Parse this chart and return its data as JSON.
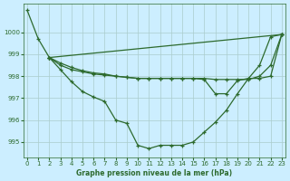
{
  "xlabel": "Graphe pression niveau de la mer (hPa)",
  "background_color": "#cceeff",
  "grid_color": "#aacccc",
  "line_color": "#2d6a2d",
  "ylim": [
    994.3,
    1001.3
  ],
  "xlim": [
    -0.3,
    23.3
  ],
  "yticks": [
    995,
    996,
    997,
    998,
    999,
    1000
  ],
  "xticks": [
    0,
    1,
    2,
    3,
    4,
    5,
    6,
    7,
    8,
    9,
    10,
    11,
    12,
    13,
    14,
    15,
    16,
    17,
    18,
    19,
    20,
    21,
    22,
    23
  ],
  "line1_x": [
    0,
    1,
    2,
    3,
    4,
    5,
    6,
    7,
    8,
    9,
    10,
    11,
    12,
    13,
    14,
    15,
    16,
    17,
    18,
    19,
    20,
    21,
    22,
    23
  ],
  "line1_y": [
    1001.0,
    999.7,
    998.85,
    998.3,
    997.75,
    997.3,
    997.05,
    996.85,
    996.0,
    995.85,
    994.85,
    994.7,
    994.85,
    994.85,
    994.85,
    995.0,
    995.45,
    995.9,
    996.45,
    997.2,
    997.9,
    998.5,
    999.8,
    999.9
  ],
  "line2_x": [
    2,
    23
  ],
  "line2_y": [
    998.85,
    999.9
  ],
  "line3_x": [
    2,
    3,
    4,
    5,
    6,
    7,
    8,
    9,
    10,
    11,
    12,
    13,
    14,
    15,
    16,
    17,
    18,
    19,
    20,
    21,
    22,
    23
  ],
  "line3_y": [
    998.85,
    998.6,
    998.4,
    998.25,
    998.15,
    998.1,
    998.0,
    997.95,
    997.9,
    997.9,
    997.9,
    997.9,
    997.9,
    997.9,
    997.9,
    997.85,
    997.85,
    997.85,
    997.85,
    998.0,
    998.5,
    999.9
  ],
  "line4_x": [
    2,
    3,
    4,
    5,
    6,
    7,
    8,
    9,
    10,
    11,
    12,
    13,
    14,
    15,
    16,
    17,
    18,
    19,
    20,
    21,
    22,
    23
  ],
  "line4_y": [
    998.85,
    998.5,
    998.3,
    998.2,
    998.1,
    998.05,
    998.0,
    997.95,
    997.9,
    997.9,
    997.9,
    997.9,
    997.9,
    997.9,
    997.85,
    997.2,
    997.2,
    997.8,
    997.9,
    997.9,
    998.0,
    999.9
  ]
}
